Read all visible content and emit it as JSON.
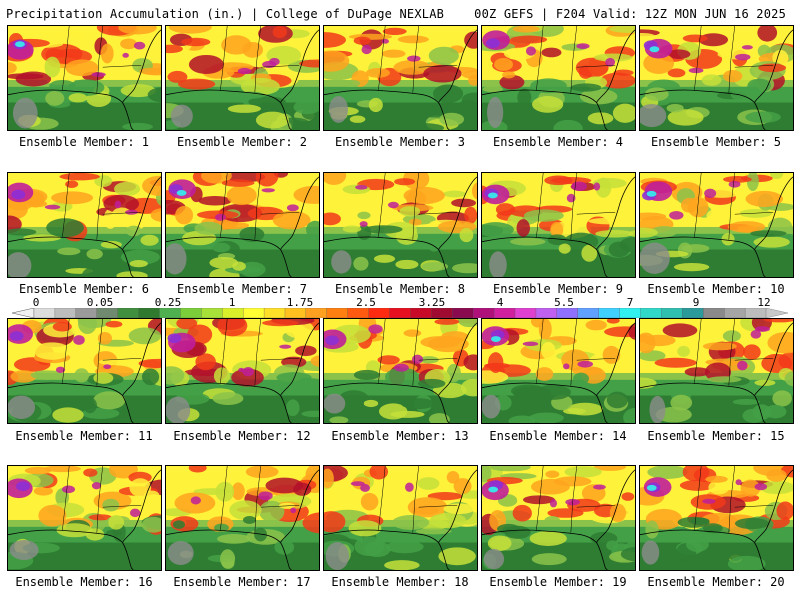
{
  "header": {
    "left": "Precipitation Accumulation (in.) | College of DuPage NEXLAB",
    "right": "00Z GEFS | F204 Valid: 12Z MON JUN 16 2025"
  },
  "member_label": "Ensemble Member:",
  "members": [
    1,
    2,
    3,
    4,
    5,
    6,
    7,
    8,
    9,
    10,
    11,
    12,
    13,
    14,
    15,
    16,
    17,
    18,
    19,
    20
  ],
  "colorbar": {
    "tick_labels": [
      "0",
      "0.05",
      "0.25",
      "1",
      "1.75",
      "2.5",
      "3.25",
      "4",
      "5.5",
      "7",
      "9",
      "12"
    ],
    "colors": [
      "#dcdcdc",
      "#bdbdbd",
      "#9a9a9a",
      "#6f8a6f",
      "#3f8f3f",
      "#2f7a2f",
      "#4fb04f",
      "#7ccd3a",
      "#a8e03a",
      "#d8ef2a",
      "#ffff33",
      "#ffe028",
      "#ffc020",
      "#ffa020",
      "#ff7f10",
      "#ff5a10",
      "#ff2a10",
      "#e61020",
      "#c80a28",
      "#a00a30",
      "#8a0a50",
      "#b0107a",
      "#d020a0",
      "#e040d0",
      "#c060f0",
      "#9070ff",
      "#60a0ff",
      "#40d0ff",
      "#30f0f0",
      "#30d8c8",
      "#30c0b0",
      "#2a9a9a",
      "#8a8a8a",
      "#a5a5a5",
      "#bcbcbc"
    ]
  },
  "map_colors": {
    "grey": "#8c8c8c",
    "dark_green": "#2e7d32",
    "green": "#43a047",
    "light_green": "#8bc34a",
    "yellow_green": "#c6e03a",
    "yellow": "#fff23a",
    "orange": "#ffa51f",
    "red": "#f23a1a",
    "dark_red": "#b3102a",
    "magenta": "#c01e9a",
    "purple": "#8c2fd6",
    "cyan": "#3ddfe8"
  }
}
